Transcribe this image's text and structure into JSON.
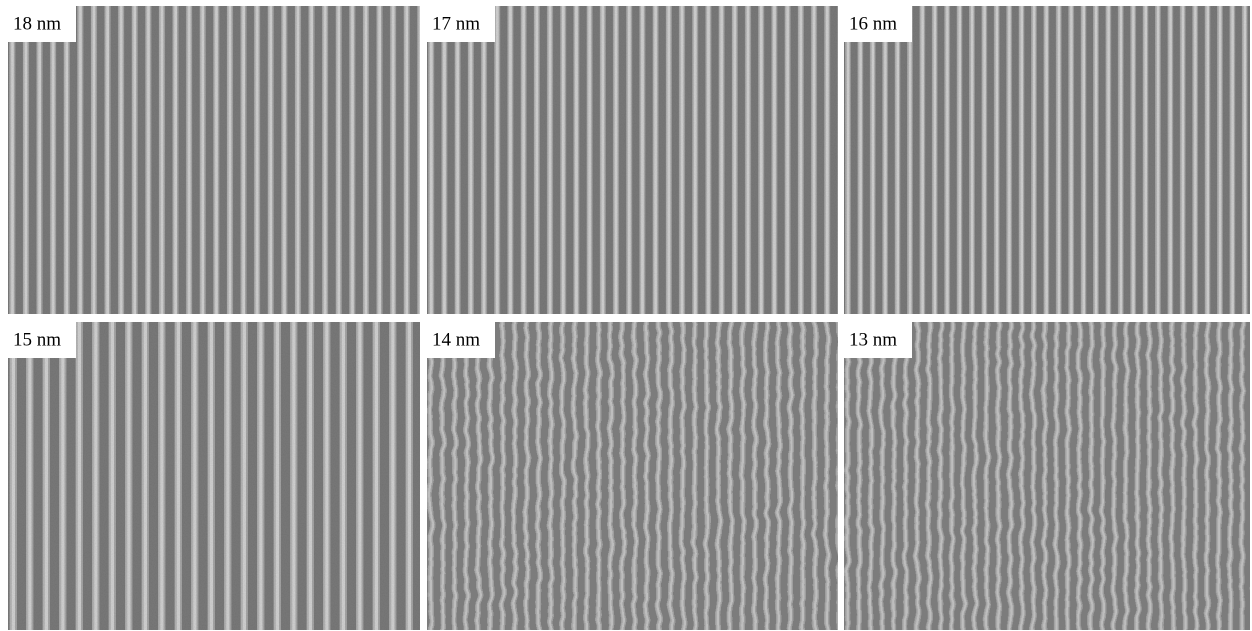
{
  "panels": [
    {
      "label": "18 nm"
    },
    {
      "label": "17 nm"
    },
    {
      "label": "16 nm"
    },
    {
      "label": "15 nm"
    },
    {
      "label": "14 nm"
    },
    {
      "label": "13 nm"
    }
  ]
}
